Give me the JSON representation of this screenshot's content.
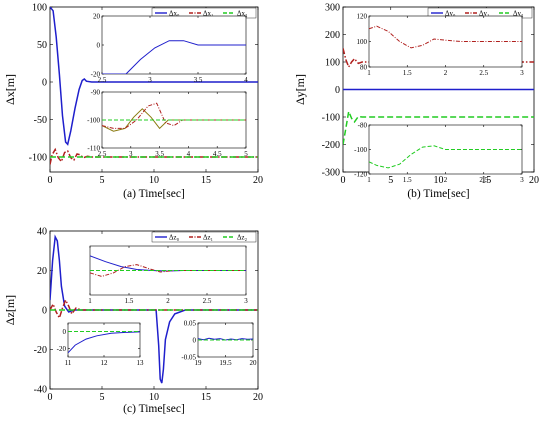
{
  "colors": {
    "blue": "#1f1fcc",
    "red": "#b0201e",
    "green": "#22cc22",
    "olive": "#8a7a10"
  },
  "chart_data": [
    {
      "type": "line",
      "panel": "a",
      "ylabel": "Δx[m]",
      "caption": "(a) Time[sec]",
      "xlim": [
        0,
        20
      ],
      "ylim": [
        -120,
        100
      ],
      "xticks": [
        0,
        5,
        10,
        15,
        20
      ],
      "yticks": [
        100,
        50,
        0,
        -50,
        -100
      ],
      "legend": [
        "Δx₀",
        "Δx₁",
        "Δx₂"
      ],
      "series": [
        {
          "name": "Δx₀",
          "color": "blue",
          "dash": "solid",
          "x": [
            0,
            0.3,
            0.6,
            0.9,
            1.2,
            1.5,
            1.7,
            2.0,
            2.4,
            2.8,
            3.1,
            3.3,
            3.5,
            4,
            20
          ],
          "y": [
            100,
            95,
            60,
            10,
            -45,
            -80,
            -83,
            -65,
            -35,
            -10,
            2,
            4,
            1,
            0,
            0
          ]
        },
        {
          "name": "Δx₁",
          "color": "red",
          "dash": "dashdot",
          "x": [
            0,
            0.2,
            0.5,
            0.8,
            1.1,
            1.4,
            1.7,
            2.0,
            2.3,
            2.6,
            2.9,
            3.2,
            3.6,
            4,
            20
          ],
          "y": [
            -110,
            -97,
            -90,
            -101,
            -106,
            -94,
            -92,
            -101,
            -104,
            -96,
            -97,
            -101,
            -99,
            -100,
            -100
          ]
        },
        {
          "name": "Δx₂",
          "color": "green",
          "dash": "dash",
          "x": [
            0,
            20
          ],
          "y": [
            -100,
            -100
          ]
        }
      ],
      "insets": [
        {
          "xlim": [
            2.5,
            4
          ],
          "ylim": [
            -20,
            20
          ],
          "xticks": [
            2.5,
            3,
            3.5,
            4
          ],
          "yticks": [
            20,
            0,
            -20
          ],
          "xtick_labels": [
            "2.5",
            "3",
            "3.5",
            "4"
          ],
          "ytick_labels": [
            "20",
            "0",
            "-20"
          ],
          "series": [
            {
              "color": "blue",
              "dash": "solid",
              "x": [
                2.5,
                2.75,
                2.9,
                3.05,
                3.2,
                3.35,
                3.5,
                3.6,
                3.75,
                4
              ],
              "y": [
                -20,
                -20,
                -10,
                -2,
                3,
                3,
                0,
                0,
                0,
                0
              ]
            }
          ]
        },
        {
          "xlim": [
            2.5,
            5
          ],
          "ylim": [
            -110,
            -90
          ],
          "xticks": [
            2.5,
            3,
            3.5,
            4,
            4.5,
            5
          ],
          "yticks": [
            -90,
            -100,
            -110
          ],
          "xtick_labels": [
            "2.5",
            "3",
            "3.5",
            "4",
            "4.5",
            "5"
          ],
          "ytick_labels": [
            "-90",
            "-100",
            "-110"
          ],
          "series": [
            {
              "color": "olive",
              "dash": "solid",
              "x": [
                2.5,
                2.7,
                2.9,
                3.05,
                3.2,
                3.35,
                3.5,
                3.65,
                3.8,
                4,
                5
              ],
              "y": [
                -102,
                -104,
                -103,
                -99,
                -96,
                -99,
                -103,
                -100,
                -100,
                -100,
                -100
              ]
            },
            {
              "color": "red",
              "dash": "dashdot",
              "x": [
                2.5,
                2.7,
                2.9,
                3.1,
                3.3,
                3.45,
                3.6,
                3.75,
                3.9,
                4.1,
                5
              ],
              "y": [
                -102,
                -103,
                -103,
                -100,
                -95,
                -94,
                -101,
                -102,
                -100,
                -100,
                -100
              ]
            },
            {
              "color": "green",
              "dash": "dash",
              "x": [
                2.5,
                5
              ],
              "y": [
                -100,
                -100
              ]
            }
          ]
        }
      ]
    },
    {
      "type": "line",
      "panel": "b",
      "ylabel": "Δy[m]",
      "caption": "(b) Time[sec]",
      "xlim": [
        0,
        20
      ],
      "ylim": [
        -300,
        300
      ],
      "xticks": [
        0,
        5,
        10,
        15,
        20
      ],
      "yticks": [
        300,
        200,
        100,
        0,
        -100,
        -200,
        -300
      ],
      "legend": [
        "Δy₀",
        "Δy₁",
        "Δy₂"
      ],
      "series": [
        {
          "name": "Δy₀",
          "color": "blue",
          "dash": "solid",
          "x": [
            0,
            20
          ],
          "y": [
            0,
            0
          ]
        },
        {
          "name": "Δy₁",
          "color": "red",
          "dash": "dashdot",
          "x": [
            0,
            0.3,
            0.6,
            0.9,
            1.2,
            1.6,
            2.0,
            20
          ],
          "y": [
            150,
            108,
            82,
            100,
            112,
            95,
            100,
            100
          ]
        },
        {
          "name": "Δy₂",
          "color": "green",
          "dash": "dash",
          "x": [
            0,
            0.3,
            0.6,
            0.9,
            1.2,
            1.6,
            2.0,
            20
          ],
          "y": [
            -200,
            -140,
            -80,
            -105,
            -118,
            -98,
            -100,
            -100
          ]
        }
      ],
      "insets": [
        {
          "xlim": [
            1,
            3
          ],
          "ylim": [
            80,
            120
          ],
          "xticks": [
            1,
            1.5,
            2,
            2.5,
            3
          ],
          "yticks": [
            120,
            100,
            80
          ],
          "xtick_labels": [
            "1",
            "1.5",
            "2",
            "2.5",
            "3"
          ],
          "ytick_labels": [
            "120",
            "100",
            "80"
          ],
          "series": [
            {
              "color": "red",
              "dash": "dashdot",
              "x": [
                1,
                1.1,
                1.25,
                1.4,
                1.55,
                1.7,
                1.85,
                2,
                2.2,
                3
              ],
              "y": [
                110,
                112,
                108,
                100,
                95,
                97,
                102,
                101,
                100,
                100
              ]
            }
          ]
        },
        {
          "xlim": [
            1,
            3
          ],
          "ylim": [
            -120,
            -80
          ],
          "xticks": [
            1,
            1.5,
            2,
            2.5,
            3
          ],
          "yticks": [
            -80,
            -100,
            -120
          ],
          "xtick_labels": [
            "1",
            "1.5",
            "2",
            "2.5",
            "3"
          ],
          "ytick_labels": [
            "-80",
            "-100",
            "-120"
          ],
          "series": [
            {
              "color": "green",
              "dash": "dash",
              "x": [
                1,
                1.1,
                1.25,
                1.4,
                1.55,
                1.7,
                1.85,
                2,
                2.2,
                3
              ],
              "y": [
                -110,
                -113,
                -115,
                -112,
                -104,
                -98,
                -97,
                -100,
                -100,
                -100
              ]
            }
          ]
        }
      ]
    },
    {
      "type": "line",
      "panel": "c",
      "ylabel": "Δz[m]",
      "caption": "(c) Time[sec]",
      "xlim": [
        0,
        20
      ],
      "ylim": [
        -40,
        40
      ],
      "xticks": [
        0,
        5,
        10,
        15,
        20
      ],
      "yticks": [
        40,
        20,
        0,
        -20,
        -40
      ],
      "legend": [
        "Δz₀",
        "Δz₁",
        "Δz₂"
      ],
      "series": [
        {
          "name": "Δz₀",
          "color": "blue",
          "dash": "solid",
          "x": [
            0,
            0.25,
            0.5,
            0.7,
            0.9,
            1.1,
            1.4,
            1.8,
            2.3,
            3,
            4,
            5,
            10.2,
            10.45,
            10.6,
            10.75,
            10.9,
            11.1,
            11.5,
            12,
            13,
            20
          ],
          "y": [
            5,
            25,
            37,
            35,
            25,
            12,
            2,
            -1,
            0,
            0,
            0,
            0,
            0,
            -18,
            -35,
            -37,
            -30,
            -15,
            -6,
            -2,
            0,
            0
          ]
        },
        {
          "name": "Δz₁",
          "color": "red",
          "dash": "dashdot",
          "x": [
            0,
            0.3,
            0.6,
            0.9,
            1.2,
            1.5,
            1.8,
            2.1,
            2.5,
            3,
            20
          ],
          "y": [
            0,
            3,
            -1,
            -4,
            1,
            5,
            2,
            -2,
            1,
            0,
            0
          ]
        },
        {
          "name": "Δz₂",
          "color": "green",
          "dash": "dash",
          "x": [
            0,
            20
          ],
          "y": [
            0,
            0
          ]
        }
      ],
      "insets": [
        {
          "xlim": [
            1,
            3
          ],
          "ylim": [
            -0.5,
            0.5
          ],
          "xticks": [
            1,
            1.5,
            2,
            2.5,
            3
          ],
          "yticks": [],
          "xtick_labels": [
            "1",
            "1.5",
            "2",
            "2.5",
            "3"
          ],
          "ytick_labels": [],
          "series": [
            {
              "color": "blue",
              "dash": "solid",
              "x": [
                1,
                1.2,
                1.4,
                1.6,
                1.8,
                2,
                2.2,
                2.5,
                3
              ],
              "y": [
                0.3,
                0.18,
                0.08,
                0.02,
                0.0,
                -0.01,
                0,
                0,
                0
              ]
            },
            {
              "color": "red",
              "dash": "dashdot",
              "x": [
                1,
                1.15,
                1.3,
                1.45,
                1.6,
                1.75,
                1.9,
                2.1,
                2.4,
                3
              ],
              "y": [
                -0.05,
                -0.12,
                -0.05,
                0.08,
                0.12,
                0.04,
                -0.03,
                0.0,
                0.0,
                0.0
              ]
            },
            {
              "color": "green",
              "dash": "dash",
              "x": [
                1,
                3
              ],
              "y": [
                0,
                0
              ]
            }
          ]
        },
        {
          "xlim": [
            11,
            13
          ],
          "ylim": [
            -30,
            10
          ],
          "xticks": [
            11,
            12,
            13
          ],
          "yticks": [
            0,
            -20
          ],
          "xtick_labels": [
            "11",
            "12",
            "13"
          ],
          "ytick_labels": [
            "0",
            "-20"
          ],
          "series": [
            {
              "color": "blue",
              "dash": "solid",
              "x": [
                11,
                11.2,
                11.5,
                11.8,
                12.2,
                12.6,
                13
              ],
              "y": [
                -25,
                -16,
                -9,
                -5,
                -2,
                -1,
                -0.5
              ]
            },
            {
              "color": "green",
              "dash": "dash",
              "x": [
                11,
                13
              ],
              "y": [
                0,
                0
              ]
            }
          ]
        },
        {
          "xlim": [
            19,
            20
          ],
          "ylim": [
            -0.05,
            0.05
          ],
          "xticks": [
            19,
            19.5,
            20
          ],
          "yticks": [
            0.05,
            0,
            -0.05
          ],
          "xtick_labels": [
            "19",
            "19.5",
            "20"
          ],
          "ytick_labels": [
            "0.05",
            "0",
            "-0.05"
          ],
          "series": [
            {
              "color": "blue",
              "dash": "solid",
              "x": [
                19,
                19.1,
                19.2,
                19.3,
                19.4,
                19.5,
                19.6,
                19.7,
                19.8,
                19.9,
                20
              ],
              "y": [
                0.004,
                0.001,
                0.005,
                0.002,
                0.004,
                0.0,
                0.003,
                0.001,
                0.004,
                0.002,
                0.003
              ]
            },
            {
              "color": "green",
              "dash": "dash",
              "x": [
                19,
                20
              ],
              "y": [
                0,
                0
              ]
            }
          ]
        }
      ]
    }
  ]
}
